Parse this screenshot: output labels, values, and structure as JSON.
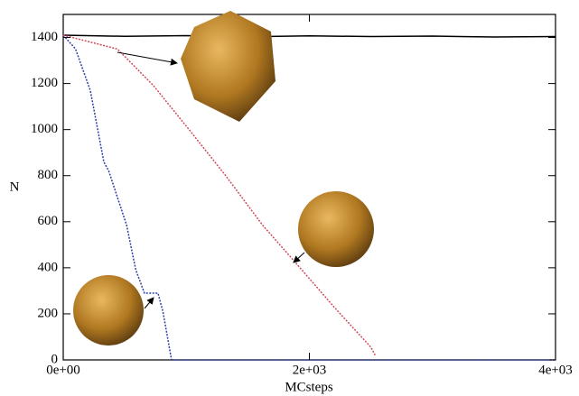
{
  "chart_data": {
    "type": "line",
    "x_label": "MCsteps",
    "y_label": "N",
    "xlim": [
      0,
      4000
    ],
    "ylim": [
      0,
      1500
    ],
    "xticks": [
      {
        "value": 0,
        "label": "0e+00"
      },
      {
        "value": 2000,
        "label": "2e+03"
      },
      {
        "value": 4000,
        "label": "4e+03"
      }
    ],
    "yticks": [
      0,
      200,
      400,
      600,
      800,
      1000,
      1200,
      1400
    ],
    "series": [
      {
        "color": "#000000",
        "x": [
          0,
          500,
          1000,
          1500,
          2000,
          2500,
          3000,
          3500,
          4000
        ],
        "values": [
          1410,
          1405,
          1408,
          1403,
          1407,
          1404,
          1406,
          1402,
          1404
        ]
      },
      {
        "color": "#2b3ea8",
        "x": [
          0,
          100,
          220,
          330,
          370,
          515,
          590,
          660,
          770,
          810,
          880,
          1000,
          4000
        ],
        "values": [
          1410,
          1350,
          1170,
          860,
          820,
          585,
          390,
          290,
          290,
          210,
          0,
          0,
          0
        ]
      },
      {
        "color": "#d04a5a",
        "x": [
          0,
          440,
          735,
          1030,
          1320,
          1620,
          1875,
          2200,
          2500,
          2540
        ],
        "values": [
          1410,
          1350,
          1190,
          995,
          800,
          585,
          430,
          230,
          55,
          15
        ]
      }
    ]
  }
}
